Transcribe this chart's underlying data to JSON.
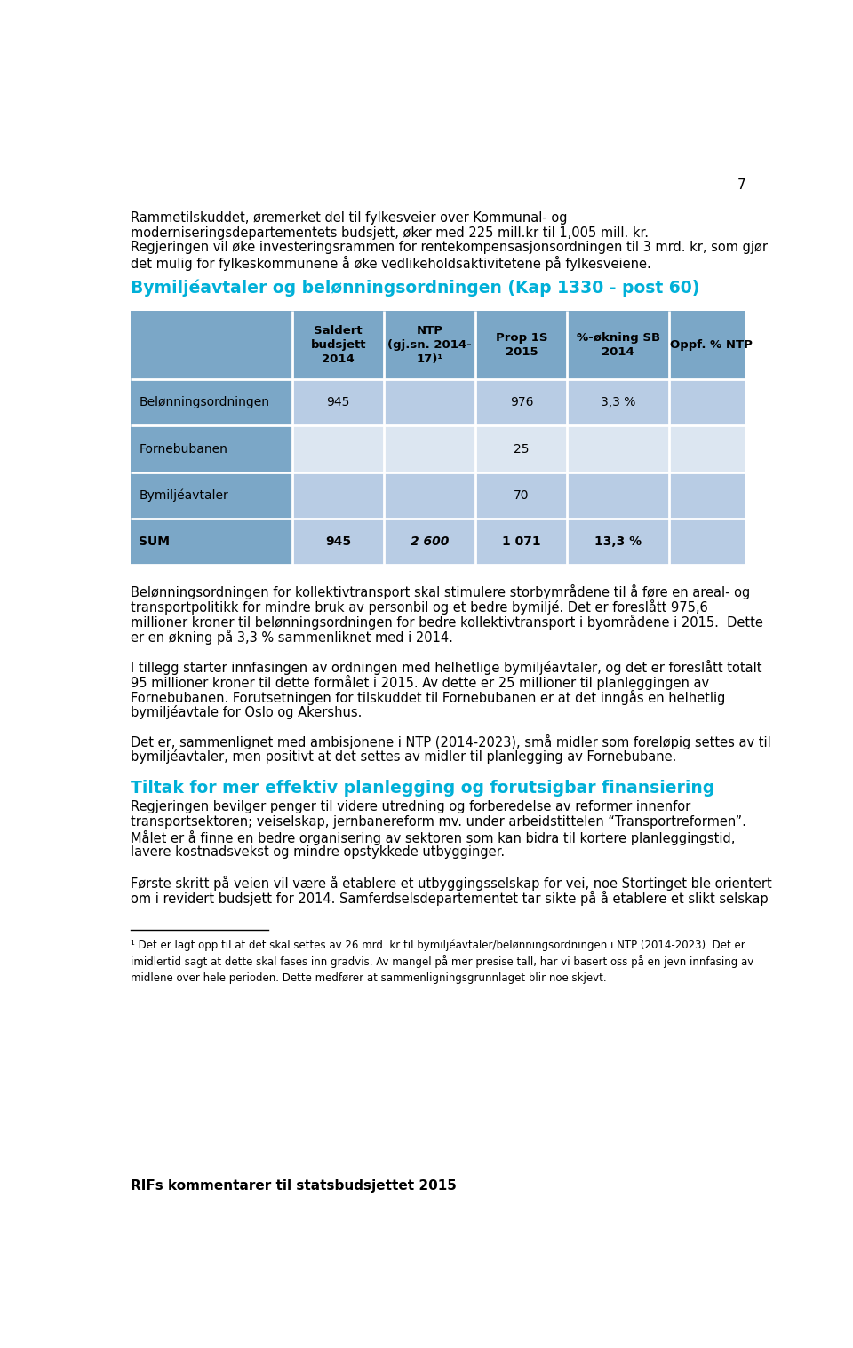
{
  "page_number": "7",
  "page_bg": "#ffffff",
  "text_color": "#000000",
  "cyan_color": "#00b0d8",
  "table_header_bg": "#7ba7c7",
  "table_label_col_bg": "#7ba7c7",
  "table_row_dark": "#b8cce4",
  "table_row_light": "#dce6f1",
  "para1_lines": [
    "Rammetilskuddet, øremerket del til fylkesveier over Kommunal- og",
    "moderniseringsdepartementets budsjett, øker med 225 mill.kr til 1,005 mill. kr.",
    "Regjeringen vil øke investeringsrammen for rentekompensasjonsordningen til 3 mrd. kr, som gjør",
    "det mulig for fylkeskommunene å øke vedlikeholdsaktivitetene på fylkesveiene."
  ],
  "section_title": "Bymiljéavtaler og belønningsordningen (Kap 1330 - post 60)",
  "col_headers": [
    "Saldert\nbudsjett\n2014",
    "NTP\n(gj.sn. 2014-\n17)¹",
    "Prop 1S\n2015",
    "%-økning SB\n2014",
    "Oppf. % NTP"
  ],
  "row_labels": [
    "Belønningsordningen",
    "Fornebubanen",
    "Bymiljéavtaler",
    "SUM"
  ],
  "table_data": [
    [
      "945",
      "",
      "976",
      "3,3 %",
      ""
    ],
    [
      "",
      "",
      "25",
      "",
      ""
    ],
    [
      "",
      "",
      "70",
      "",
      ""
    ],
    [
      "945",
      "2 600",
      "1 071",
      "13,3 %",
      ""
    ]
  ],
  "para2_lines": [
    "Belønningsordningen for kollektivtransport skal stimulere storbymrådene til å føre en areal- og",
    "transportpolitikk for mindre bruk av personbil og et bedre bymiljé. Det er foreslått 975,6",
    "millioner kroner til belønningsordningen for bedre kollektivtransport i byområdene i 2015.  Dette",
    "er en økning på 3,3 % sammenliknet med i 2014."
  ],
  "para3_lines": [
    "I tillegg starter innfasingen av ordningen med helhetlige bymiljéavtaler, og det er foreslått totalt",
    "95 millioner kroner til dette formålet i 2015. Av dette er 25 millioner til planleggingen av",
    "Fornebubanen. Forutsetningen for tilskuddet til Fornebubanen er at det inngås en helhetlig",
    "bymiljéavtale for Oslo og Akershus."
  ],
  "para4_lines": [
    "Det er, sammenlignet med ambisjonene i NTP (2014-2023), små midler som foreløpig settes av til",
    "bymiljéavtaler, men positivt at det settes av midler til planlegging av Fornebubane."
  ],
  "section_title2": "Tiltak for mer effektiv planlegging og forutsigbar finansiering",
  "para5_lines": [
    "Regjeringen bevilger penger til videre utredning og forberedelse av reformer innenfor",
    "transportsektoren; veiselskap, jernbanereform mv. under arbeidstittelen “Transportreformen”.",
    "Målet er å finne en bedre organisering av sektoren som kan bidra til kortere planleggingstid,",
    "lavere kostnadsvekst og mindre opstykkede utbygginger."
  ],
  "para6_lines": [
    "Første skritt på veien vil være å etablere et utbyggingsselskap for vei, noe Stortinget ble orientert",
    "om i revidert budsjett for 2014. Samferdselsdepartementet tar sikte på å etablere et slikt selskap"
  ],
  "footnote": "¹ Det er lagt opp til at det skal settes av 26 mrd. kr til bymiljéavtaler/belønningsordningen i NTP (2014-2023). Det er\nimidlertid sagt at dette skal fases inn gradvis. Av mangel på mer presise tall, har vi basert oss på en jevn innfasing av\nmidlene over hele perioden. Dette medfører at sammenligningsgrunnlaget blir noe skjevt.",
  "footer": "RIFs kommentarer til statsbudsjettet 2015"
}
